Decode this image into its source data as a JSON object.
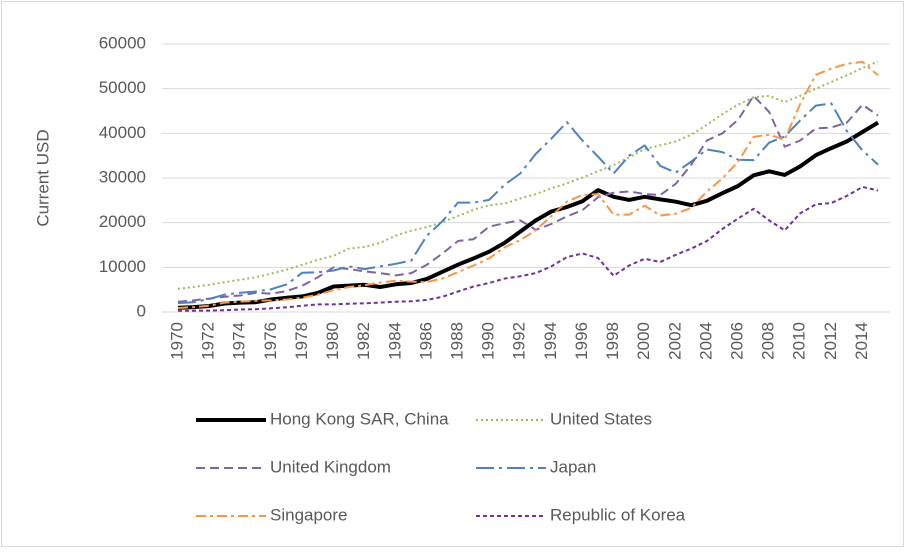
{
  "chart_data": {
    "type": "line",
    "y_label": "Current USD",
    "x": [
      1970,
      1971,
      1972,
      1973,
      1974,
      1975,
      1976,
      1977,
      1978,
      1979,
      1980,
      1981,
      1982,
      1983,
      1984,
      1985,
      1986,
      1987,
      1988,
      1989,
      1990,
      1991,
      1992,
      1993,
      1994,
      1995,
      1996,
      1997,
      1998,
      1999,
      2000,
      2001,
      2002,
      2003,
      2004,
      2005,
      2006,
      2007,
      2008,
      2009,
      2010,
      2011,
      2012,
      2013,
      2014,
      2015
    ],
    "xlim": [
      1970,
      2015
    ],
    "xticks": [
      1970,
      1972,
      1974,
      1976,
      1978,
      1980,
      1982,
      1984,
      1986,
      1988,
      1990,
      1992,
      1994,
      1996,
      1998,
      2000,
      2002,
      2004,
      2006,
      2008,
      2010,
      2012,
      2014
    ],
    "ylim": [
      0,
      60000
    ],
    "yticks": [
      0,
      10000,
      20000,
      30000,
      40000,
      50000,
      60000
    ],
    "grid": true,
    "legend": "bottom",
    "series": [
      {
        "name": "Hong Kong SAR, China",
        "color": "#000000",
        "dash": "solid",
        "values": [
          960,
          1100,
          1350,
          1900,
          2100,
          2200,
          2800,
          3200,
          3500,
          4300,
          5700,
          5900,
          6100,
          5600,
          6200,
          6500,
          7400,
          9000,
          10600,
          12000,
          13500,
          15500,
          18000,
          20500,
          22500,
          23500,
          24800,
          27300,
          25800,
          25100,
          25800,
          25200,
          24700,
          23900,
          24900,
          26600,
          28200,
          30600,
          31500,
          30700,
          32600,
          35100,
          36700,
          38200,
          40300,
          42400
        ]
      },
      {
        "name": "United States",
        "color": "#9bbb59",
        "dash": "dotted",
        "values": [
          5200,
          5600,
          6100,
          6700,
          7200,
          7800,
          8600,
          9500,
          10600,
          11700,
          12600,
          14200,
          14600,
          15500,
          17100,
          18200,
          19000,
          20100,
          21500,
          22900,
          23900,
          24300,
          25400,
          26400,
          27700,
          28800,
          30100,
          31500,
          32900,
          34600,
          36500,
          37300,
          38200,
          39700,
          41900,
          44300,
          46400,
          48100,
          48400,
          47000,
          48400,
          50000,
          51500,
          53000,
          54600,
          56100
        ]
      },
      {
        "name": "United Kingdom",
        "color": "#8064a2",
        "dash": "dashed",
        "values": [
          2300,
          2600,
          3000,
          3400,
          3700,
          4300,
          4100,
          4700,
          5900,
          7800,
          10000,
          9600,
          9100,
          8700,
          8200,
          8700,
          10600,
          13100,
          15900,
          16300,
          19100,
          19900,
          20500,
          18400,
          19700,
          21400,
          22800,
          25700,
          26700,
          27000,
          26400,
          26200,
          28700,
          33000,
          38400,
          40000,
          43000,
          48400,
          44800,
          37000,
          38400,
          41100,
          41300,
          42400,
          46400,
          44000
        ]
      },
      {
        "name": "Japan",
        "color": "#4f81bd",
        "dash": "dash-dot",
        "values": [
          2000,
          2200,
          2900,
          3900,
          4300,
          4600,
          5100,
          6200,
          8800,
          8900,
          9300,
          10200,
          9600,
          10200,
          10800,
          11500,
          17100,
          20300,
          24500,
          24500,
          25100,
          28500,
          31000,
          35400,
          38800,
          42500,
          38400,
          34800,
          31000,
          35000,
          37300,
          32700,
          31200,
          33700,
          36400,
          35800,
          34100,
          34000,
          37900,
          39300,
          42900,
          46200,
          46700,
          40500,
          36200,
          33000
        ]
      },
      {
        "name": "Singapore",
        "color": "#f79646",
        "dash": "long-dash-dot",
        "values": [
          900,
          1100,
          1400,
          2100,
          2300,
          2500,
          2600,
          2800,
          3200,
          3900,
          4900,
          5600,
          6000,
          6600,
          7000,
          6800,
          6700,
          7500,
          8900,
          10400,
          12000,
          14500,
          16100,
          18300,
          21500,
          24700,
          26200,
          26400,
          21800,
          21800,
          23800,
          21600,
          22000,
          23300,
          27000,
          29900,
          33600,
          39200,
          39700,
          38600,
          46600,
          53100,
          54500,
          55600,
          56000,
          53000
        ]
      },
      {
        "name": "Republic of Korea",
        "color": "#7030a0",
        "dash": "short-dash",
        "values": [
          280,
          300,
          320,
          400,
          560,
          620,
          830,
          1050,
          1400,
          1700,
          1700,
          1850,
          1950,
          2100,
          2300,
          2400,
          2700,
          3400,
          4600,
          5700,
          6500,
          7500,
          8000,
          8700,
          10200,
          12300,
          13100,
          12100,
          8100,
          10400,
          11900,
          11200,
          12800,
          14200,
          15900,
          18600,
          20900,
          23100,
          20500,
          18300,
          22100,
          24100,
          24400,
          26000,
          28000,
          27200
        ]
      }
    ]
  }
}
